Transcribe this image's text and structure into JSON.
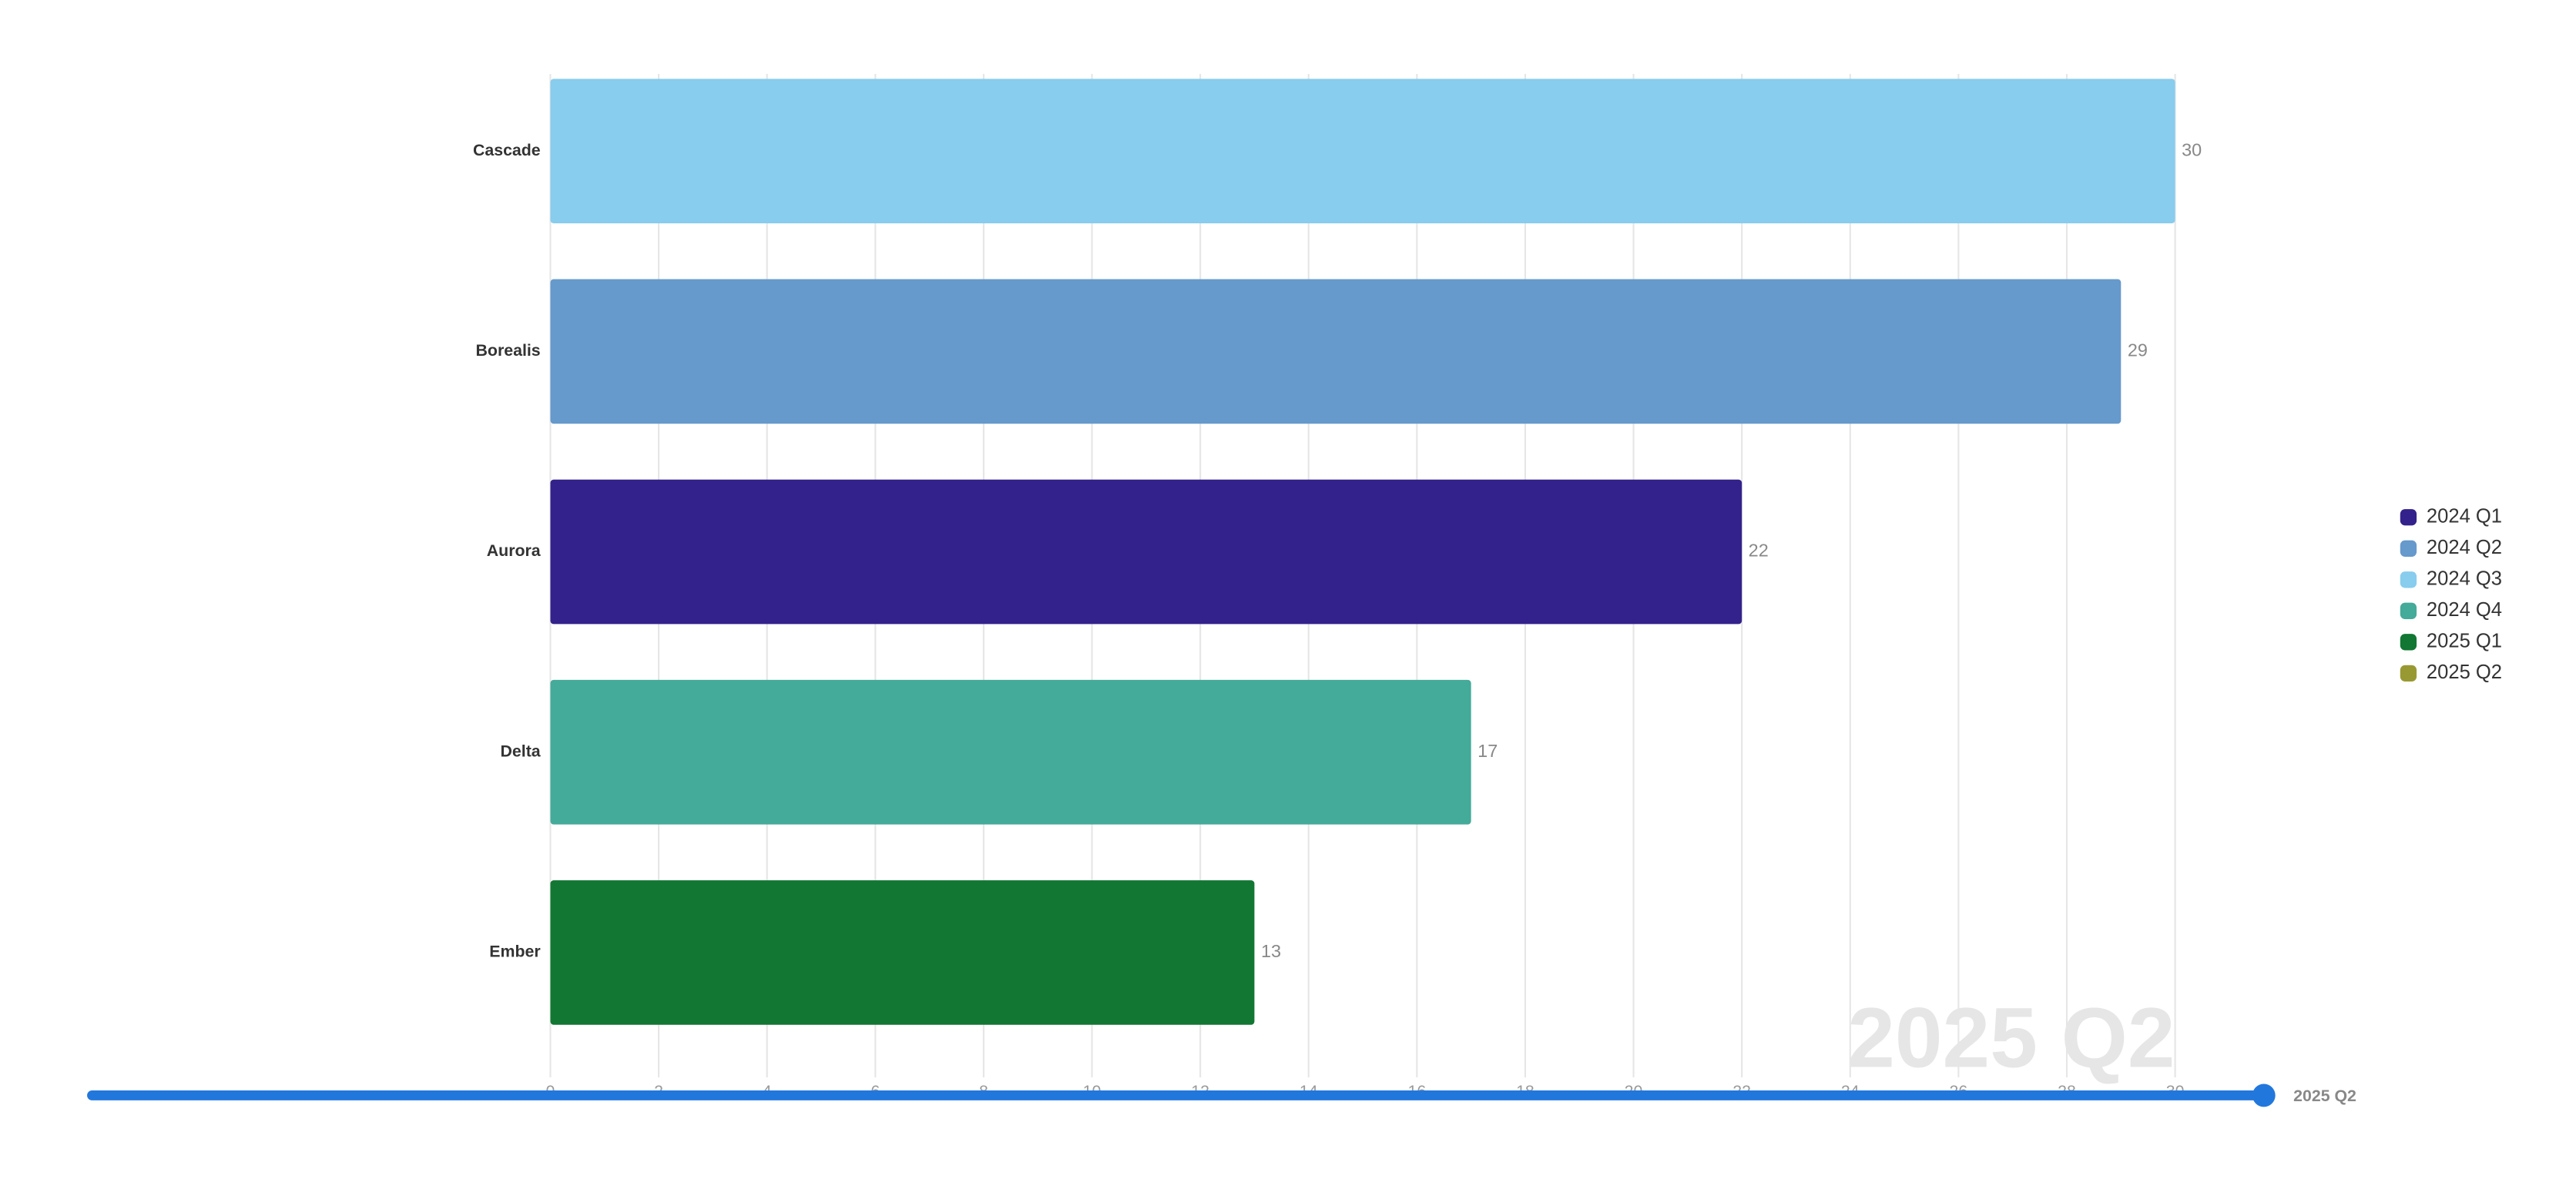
{
  "chart_data": {
    "type": "bar",
    "orientation": "horizontal",
    "categories": [
      "Cascade",
      "Borealis",
      "Aurora",
      "Delta",
      "Ember"
    ],
    "series": [
      {
        "name": "2024 Q1",
        "color": "#33228b",
        "values": [
          null,
          null,
          22,
          null,
          null
        ]
      },
      {
        "name": "2024 Q2",
        "color": "#6699cc",
        "values": [
          null,
          29,
          null,
          null,
          null
        ]
      },
      {
        "name": "2024 Q3",
        "color": "#88ccee",
        "values": [
          30,
          null,
          null,
          null,
          null
        ]
      },
      {
        "name": "2024 Q4",
        "color": "#44aa99",
        "values": [
          null,
          null,
          null,
          17,
          null
        ]
      },
      {
        "name": "2025 Q1",
        "color": "#117733",
        "values": [
          null,
          null,
          null,
          null,
          13
        ]
      },
      {
        "name": "2025 Q2",
        "color": "#999933",
        "values": [
          null,
          null,
          null,
          null,
          null
        ]
      }
    ],
    "xlim": [
      0,
      30
    ],
    "xticks": [
      0,
      2,
      4,
      6,
      8,
      10,
      12,
      14,
      16,
      18,
      20,
      22,
      24,
      26,
      28,
      30
    ],
    "grid": true,
    "legend": "right",
    "current_period": "2025 Q2"
  }
}
